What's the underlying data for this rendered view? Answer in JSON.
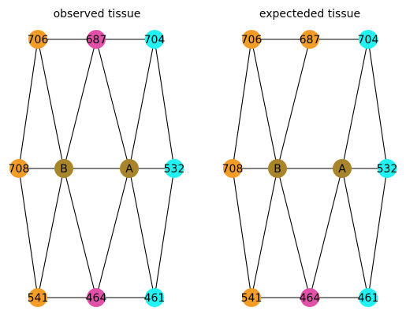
{
  "colors": {
    "orange": "#f39c28",
    "pink": "#e052a8",
    "cyan": "#22f2f2",
    "olive": "#a8842a"
  },
  "panels": [
    {
      "title": "observed tissue",
      "nodes": [
        {
          "id": "706",
          "label": "706",
          "color": "orange"
        },
        {
          "id": "687",
          "label": "687",
          "color": "pink"
        },
        {
          "id": "704",
          "label": "704",
          "color": "cyan"
        },
        {
          "id": "708",
          "label": "708",
          "color": "orange"
        },
        {
          "id": "B",
          "label": "B",
          "color": "olive"
        },
        {
          "id": "A",
          "label": "A",
          "color": "olive"
        },
        {
          "id": "532",
          "label": "532",
          "color": "cyan"
        },
        {
          "id": "541",
          "label": "541",
          "color": "orange"
        },
        {
          "id": "464",
          "label": "464",
          "color": "pink"
        },
        {
          "id": "461",
          "label": "461",
          "color": "cyan"
        }
      ],
      "edges": [
        [
          "706",
          "687"
        ],
        [
          "687",
          "704"
        ],
        [
          "708",
          "B"
        ],
        [
          "B",
          "A"
        ],
        [
          "A",
          "532"
        ],
        [
          "541",
          "464"
        ],
        [
          "464",
          "461"
        ],
        [
          "706",
          "708"
        ],
        [
          "706",
          "B"
        ],
        [
          "687",
          "B"
        ],
        [
          "687",
          "A"
        ],
        [
          "704",
          "A"
        ],
        [
          "704",
          "532"
        ],
        [
          "541",
          "708"
        ],
        [
          "541",
          "B"
        ],
        [
          "464",
          "B"
        ],
        [
          "464",
          "A"
        ],
        [
          "461",
          "A"
        ],
        [
          "461",
          "532"
        ]
      ]
    },
    {
      "title": "expecteded tissue",
      "nodes": [
        {
          "id": "706",
          "label": "706",
          "color": "orange"
        },
        {
          "id": "687",
          "label": "687",
          "color": "orange"
        },
        {
          "id": "704",
          "label": "704",
          "color": "cyan"
        },
        {
          "id": "708",
          "label": "708",
          "color": "orange"
        },
        {
          "id": "B",
          "label": "B",
          "color": "olive"
        },
        {
          "id": "A",
          "label": "A",
          "color": "olive"
        },
        {
          "id": "532",
          "label": "532",
          "color": "cyan"
        },
        {
          "id": "541",
          "label": "541",
          "color": "orange"
        },
        {
          "id": "464",
          "label": "464",
          "color": "pink"
        },
        {
          "id": "461",
          "label": "461",
          "color": "cyan"
        }
      ],
      "edges": [
        [
          "706",
          "687"
        ],
        [
          "687",
          "704"
        ],
        [
          "708",
          "B"
        ],
        [
          "B",
          "A"
        ],
        [
          "A",
          "532"
        ],
        [
          "541",
          "464"
        ],
        [
          "464",
          "461"
        ],
        [
          "706",
          "708"
        ],
        [
          "706",
          "B"
        ],
        [
          "687",
          "B"
        ],
        [
          "704",
          "A"
        ],
        [
          "704",
          "532"
        ],
        [
          "541",
          "708"
        ],
        [
          "541",
          "B"
        ],
        [
          "464",
          "B"
        ],
        [
          "464",
          "A"
        ],
        [
          "461",
          "A"
        ],
        [
          "461",
          "532"
        ]
      ]
    }
  ]
}
